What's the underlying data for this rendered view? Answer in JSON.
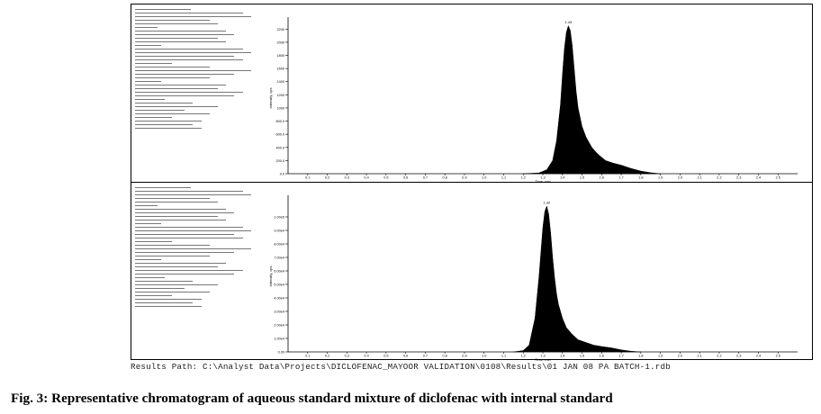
{
  "caption": "Fig. 3: Representative chromatogram of aqueous standard mixture of diclofenac with internal standard",
  "results_path": "Results Path: C:\\Analyst Data\\Projects\\DICLOFENAC_MAYOOR VALIDATION\\0108\\Results\\01 JAN 08 PA BATCH-1.rdb",
  "chart_data": [
    {
      "type": "area",
      "ylabel": "Intensity, cps",
      "xlabel": "Time, min",
      "xlim": [
        0,
        2.6
      ],
      "ylim": [
        0,
        2300
      ],
      "x_ticks": [
        0.1,
        0.2,
        0.3,
        0.4,
        0.5,
        0.6,
        0.7,
        0.8,
        0.9,
        1.0,
        1.1,
        1.2,
        1.3,
        1.4,
        1.5,
        1.6,
        1.7,
        1.8,
        1.9,
        2.0,
        2.1,
        2.2,
        2.3,
        2.4,
        2.5
      ],
      "x_tick_labels": [
        "0.1",
        "0.2",
        "0.3",
        "0.4",
        "0.5",
        "0.6",
        "0.7",
        "0.8",
        "0.9",
        "1.0",
        "1.1",
        "1.2",
        "1.3",
        "1.4",
        "1.5",
        "1.6",
        "1.7",
        "1.8",
        "1.9",
        "2.0",
        "2.1",
        "2.2",
        "2.3",
        "2.4",
        "2.5"
      ],
      "y_ticks": [
        0,
        200,
        400,
        600,
        800,
        1000,
        1200,
        1400,
        1600,
        1800,
        2000,
        2200
      ],
      "y_tick_labels": [
        "0.0",
        "200.0",
        "400.0",
        "600.0",
        "800.0",
        "1000",
        "1200",
        "1400",
        "1600",
        "1800",
        "2000",
        "2200"
      ],
      "peak_label": "1.43",
      "x": [
        1.2,
        1.28,
        1.32,
        1.35,
        1.37,
        1.39,
        1.4,
        1.41,
        1.42,
        1.43,
        1.44,
        1.45,
        1.46,
        1.47,
        1.48,
        1.5,
        1.52,
        1.55,
        1.58,
        1.62,
        1.66,
        1.7,
        1.75,
        1.8,
        1.85,
        1.9
      ],
      "y": [
        0,
        12,
        60,
        200,
        500,
        1050,
        1500,
        1900,
        2150,
        2250,
        2180,
        1950,
        1600,
        1250,
        1000,
        720,
        560,
        400,
        300,
        200,
        160,
        130,
        80,
        40,
        15,
        0
      ]
    },
    {
      "type": "area",
      "ylabel": "Intensity, cps",
      "xlabel": "Time, min",
      "xlim": [
        0,
        2.6
      ],
      "ylim": [
        0,
        1.12
      ],
      "x_ticks": [
        0.1,
        0.2,
        0.3,
        0.4,
        0.5,
        0.6,
        0.7,
        0.8,
        0.9,
        1.0,
        1.1,
        1.2,
        1.3,
        1.4,
        1.5,
        1.6,
        1.7,
        1.8,
        1.9,
        2.0,
        2.1,
        2.2,
        2.3,
        2.4,
        2.5
      ],
      "x_tick_labels": [
        "0.1",
        "0.2",
        "0.3",
        "0.4",
        "0.5",
        "0.6",
        "0.7",
        "0.8",
        "0.9",
        "1.0",
        "1.1",
        "1.2",
        "1.3",
        "1.4",
        "1.5",
        "1.6",
        "1.7",
        "1.8",
        "1.9",
        "2.0",
        "2.1",
        "2.2",
        "2.3",
        "2.4",
        "2.5"
      ],
      "y_ticks": [
        0,
        0.1,
        0.2,
        0.3,
        0.4,
        0.5,
        0.6,
        0.7,
        0.8,
        0.9,
        1.0
      ],
      "y_tick_labels": [
        "0.00",
        "1.00e4",
        "2.00e4",
        "3.00e4",
        "4.00e4",
        "5.00e4",
        "6.00e4",
        "7.00e4",
        "8.00e4",
        "9.00e4",
        "1.00e5"
      ],
      "peak_label": "1.32",
      "x": [
        1.15,
        1.2,
        1.23,
        1.26,
        1.28,
        1.3,
        1.31,
        1.32,
        1.33,
        1.34,
        1.35,
        1.36,
        1.37,
        1.38,
        1.4,
        1.42,
        1.45,
        1.48,
        1.52,
        1.56,
        1.6,
        1.65,
        1.7,
        1.75,
        1.8
      ],
      "y": [
        0,
        0.01,
        0.05,
        0.25,
        0.55,
        0.92,
        1.04,
        1.08,
        1.02,
        0.88,
        0.7,
        0.55,
        0.43,
        0.35,
        0.25,
        0.18,
        0.13,
        0.09,
        0.07,
        0.05,
        0.04,
        0.03,
        0.015,
        0.005,
        0
      ]
    }
  ]
}
